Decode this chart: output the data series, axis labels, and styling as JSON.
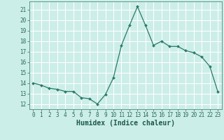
{
  "x": [
    0,
    1,
    2,
    3,
    4,
    5,
    6,
    7,
    8,
    9,
    10,
    11,
    12,
    13,
    14,
    15,
    16,
    17,
    18,
    19,
    20,
    21,
    22,
    23
  ],
  "y": [
    14.0,
    13.8,
    13.5,
    13.4,
    13.2,
    13.2,
    12.6,
    12.5,
    12.0,
    12.9,
    14.5,
    17.6,
    19.5,
    21.3,
    19.5,
    17.6,
    18.0,
    17.5,
    17.5,
    17.1,
    16.9,
    16.5,
    15.6,
    13.2
  ],
  "line_color": "#2a7a6a",
  "marker": "D",
  "marker_size": 2.0,
  "bg_color": "#cceee8",
  "grid_color": "#ffffff",
  "xlabel": "Humidex (Indice chaleur)",
  "ylim": [
    11.5,
    21.8
  ],
  "xlim": [
    -0.5,
    23.5
  ],
  "yticks": [
    12,
    13,
    14,
    15,
    16,
    17,
    18,
    19,
    20,
    21
  ],
  "xticks": [
    0,
    1,
    2,
    3,
    4,
    5,
    6,
    7,
    8,
    9,
    10,
    11,
    12,
    13,
    14,
    15,
    16,
    17,
    18,
    19,
    20,
    21,
    22,
    23
  ],
  "tick_label_size": 5.5,
  "xlabel_size": 7.0,
  "tick_color": "#2a6a5a",
  "label_color": "#1a5a4a"
}
